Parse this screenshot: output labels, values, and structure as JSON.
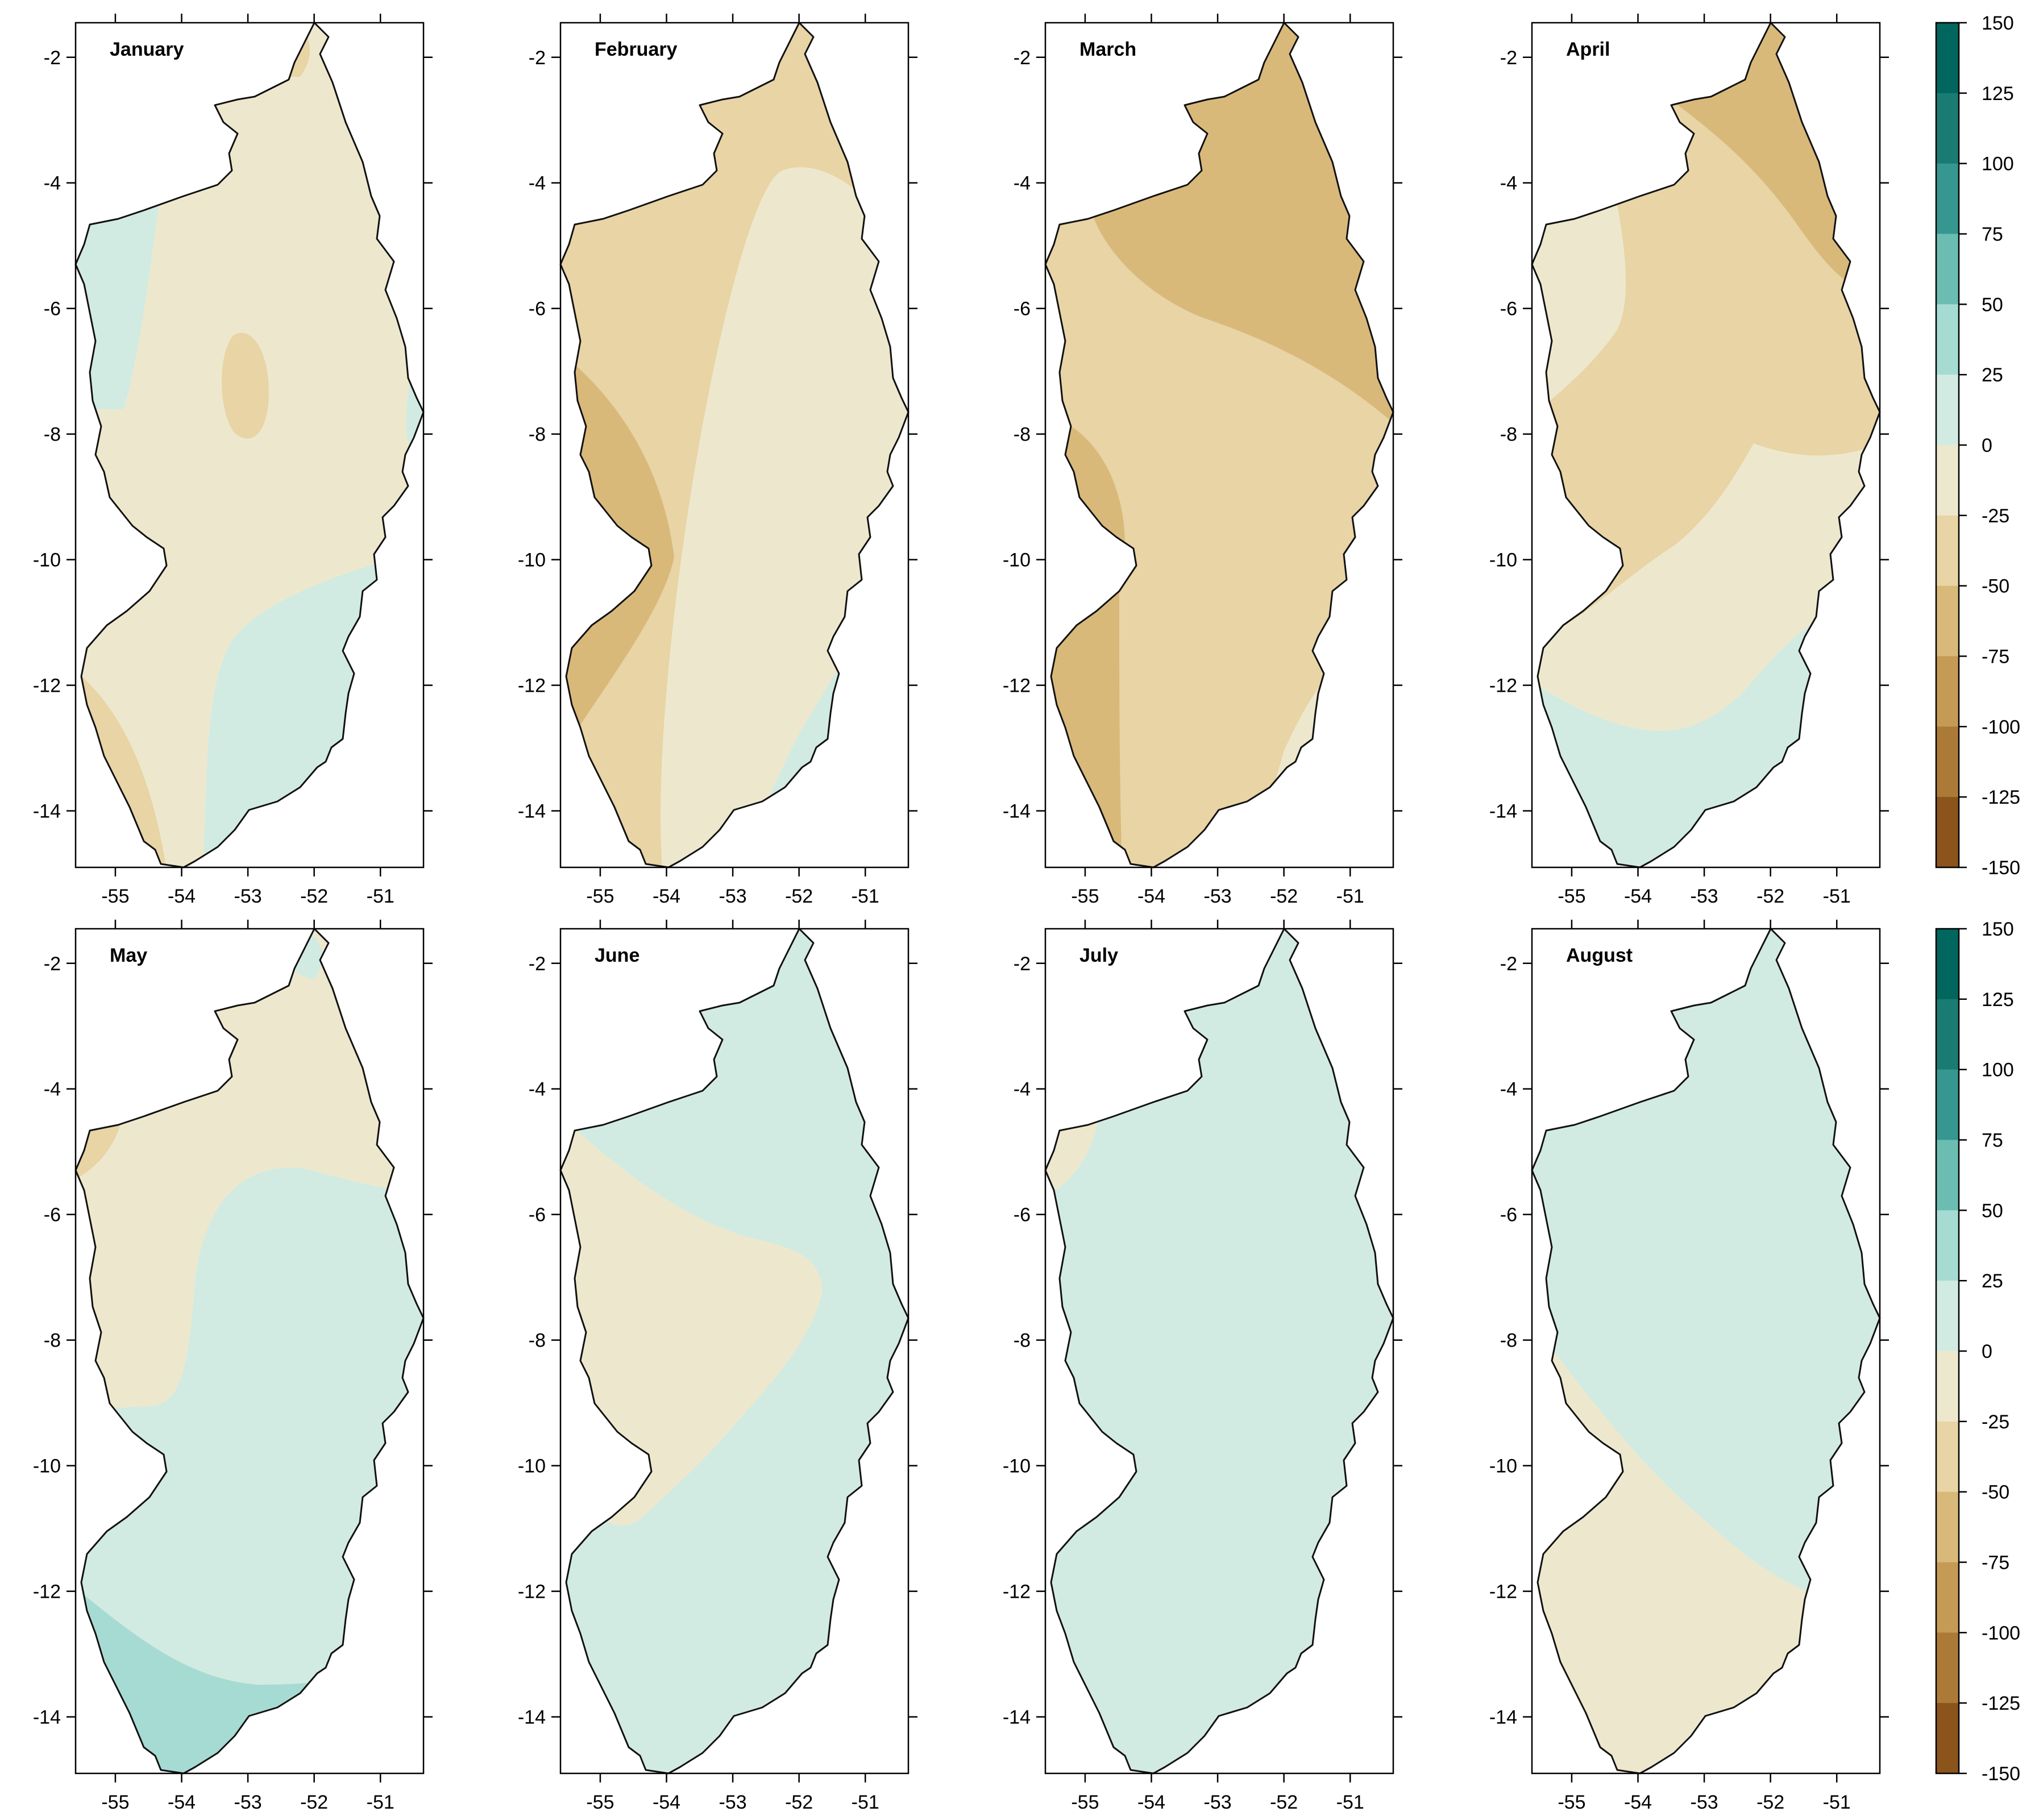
{
  "chart_data": {
    "type": "heatmap",
    "layout": "grid of filled-contour maps, 2 rows x 4 columns",
    "x_ticks": [
      "-55",
      "-54",
      "-53",
      "-52",
      "-51"
    ],
    "y_ticks": [
      "-2",
      "-4",
      "-6",
      "-8",
      "-10",
      "-12",
      "-14"
    ],
    "xlim": [
      -55.6,
      -50.35
    ],
    "ylim": [
      -14.9,
      -1.45
    ],
    "grid": false,
    "legend": "right",
    "colorbar": {
      "labels": [
        "150",
        "125",
        "100",
        "75",
        "50",
        "25",
        "0",
        "-25",
        "-50",
        "-75",
        "-100",
        "-125",
        "-150"
      ],
      "bins": [
        {
          "range": [
            125,
            150
          ],
          "color": "#01665e"
        },
        {
          "range": [
            100,
            125
          ],
          "color": "#1a7b72"
        },
        {
          "range": [
            75,
            100
          ],
          "color": "#35978f"
        },
        {
          "range": [
            50,
            75
          ],
          "color": "#6bbdb2"
        },
        {
          "range": [
            25,
            50
          ],
          "color": "#a6dbd3"
        },
        {
          "range": [
            0,
            25
          ],
          "color": "#d2ebe2"
        },
        {
          "range": [
            -25,
            0
          ],
          "color": "#ede8cd"
        },
        {
          "range": [
            -50,
            -25
          ],
          "color": "#e8d4a5"
        },
        {
          "range": [
            -75,
            -50
          ],
          "color": "#d9b97a"
        },
        {
          "range": [
            -100,
            -75
          ],
          "color": "#c59a54"
        },
        {
          "range": [
            -125,
            -100
          ],
          "color": "#ac7a37"
        },
        {
          "range": [
            -150,
            -125
          ],
          "color": "#8b541a"
        }
      ]
    },
    "panels": [
      {
        "title": "January",
        "dominant_class": "-25 to 0",
        "regions": [
          "0 to 25 (west, southeast, east edge)",
          "-50 to -25 (central pocket, southwest, north tip)"
        ]
      },
      {
        "title": "February",
        "dominant_class": "-50 to -25",
        "regions": [
          "-25 to 0 (central band)",
          "-75 to -50 (west)",
          "0 to 25 (southeast)"
        ]
      },
      {
        "title": "March",
        "dominant_class": "-50 to -25",
        "regions": [
          "-75 to -50 (north, west edges)",
          "-25 to 0 (southeast)"
        ]
      },
      {
        "title": "April",
        "dominant_class": "-50 to -25",
        "regions": [
          "-75 to -50 (northeast)",
          "-25 to 0 (west, south-central)",
          "0 to 25 (south)"
        ]
      },
      {
        "title": "May",
        "dominant_class": "0 to 25",
        "regions": [
          "-25 to 0 (north)",
          "25 to 50 (south)",
          "-50 to -25 (northwest tip)"
        ]
      },
      {
        "title": "June",
        "dominant_class": "0 to 25",
        "regions": [
          "-25 to 0 (west-central)"
        ]
      },
      {
        "title": "July",
        "dominant_class": "0 to 25",
        "regions": [
          "-25 to 0 (northwest tip)"
        ]
      },
      {
        "title": "August",
        "dominant_class": "0 to 25",
        "regions": [
          "-25 to 0 (southwest and south)"
        ]
      }
    ]
  }
}
